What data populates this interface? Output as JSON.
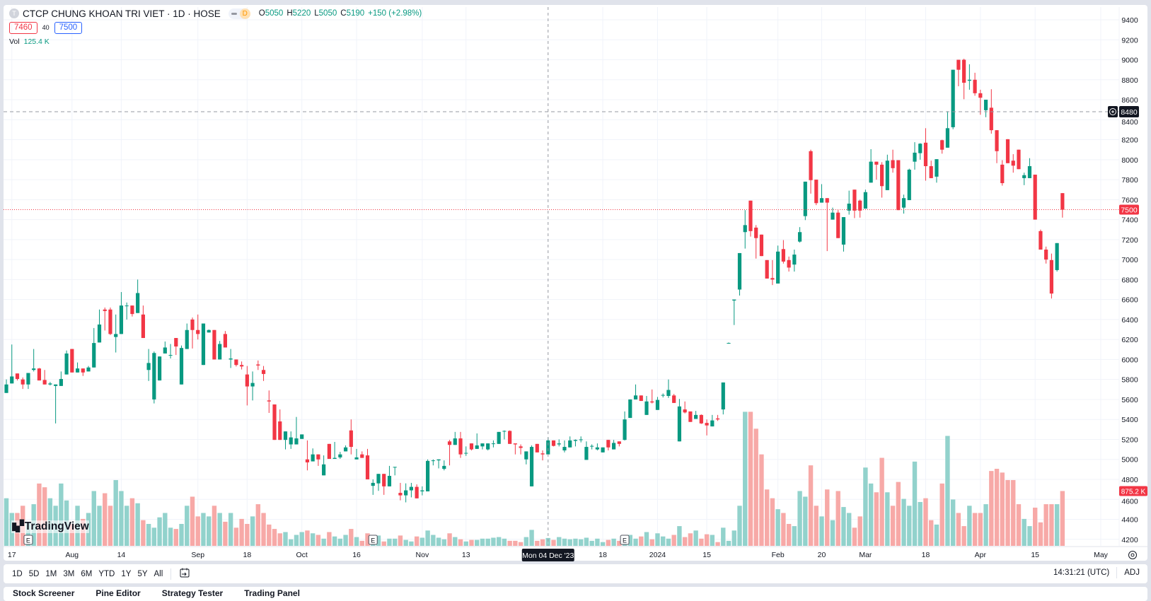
{
  "header": {
    "symbol_initial": "T",
    "title": "CTCP CHUNG KHOAN TRI VIET · 1D · HOSE",
    "badge": "D",
    "ohlc": {
      "o_label": "O",
      "o": "5050",
      "h_label": "H",
      "h": "5220",
      "l_label": "L",
      "l": "5050",
      "c_label": "C",
      "c": "5190",
      "change": "+150 (+2.98%)"
    }
  },
  "quick_trade": {
    "sell": "7460",
    "spread": "40",
    "buy": "7500"
  },
  "volume_legend": {
    "label": "Vol",
    "value": "125.4 K"
  },
  "price_tags": {
    "last_price": "7500",
    "alert_line": "8480",
    "last_volume": "875.2 K"
  },
  "crosshair_label": "Mon 04 Dec '23",
  "logo_text": "TradingView",
  "toolbar": {
    "ranges": [
      "1D",
      "5D",
      "1M",
      "3M",
      "6M",
      "YTD",
      "1Y",
      "5Y",
      "All"
    ],
    "clock": "14:31:21 (UTC)",
    "adj": "ADJ"
  },
  "bottom_tabs": [
    "Stock Screener",
    "Pine Editor",
    "Strategy Tester",
    "Trading Panel"
  ],
  "chart_data": {
    "type": "candlestick",
    "interval": "1D",
    "price_axis": {
      "min": 4200,
      "max": 9400,
      "step": 200,
      "labels": [
        "9400",
        "9200",
        "9000",
        "8800",
        "8600",
        "8400",
        "8200",
        "8000",
        "7800",
        "7600",
        "7400",
        "7200",
        "7000",
        "6800",
        "6600",
        "6400",
        "6200",
        "6000",
        "5800",
        "5600",
        "5400",
        "5200",
        "5000",
        "4800",
        "4600",
        "4400",
        "4200"
      ]
    },
    "time_ticks": [
      {
        "label": "17",
        "idx": 1
      },
      {
        "label": "Aug",
        "idx": 12
      },
      {
        "label": "14",
        "idx": 21
      },
      {
        "label": "Sep",
        "idx": 35
      },
      {
        "label": "18",
        "idx": 44
      },
      {
        "label": "Oct",
        "idx": 54
      },
      {
        "label": "16",
        "idx": 64
      },
      {
        "label": "Nov",
        "idx": 76
      },
      {
        "label": "13",
        "idx": 84
      },
      {
        "label": "18",
        "idx": 109
      },
      {
        "label": "2024",
        "idx": 119
      },
      {
        "label": "15",
        "idx": 128
      },
      {
        "label": "Feb",
        "idx": 141
      },
      {
        "label": "20",
        "idx": 149
      },
      {
        "label": "Mar",
        "idx": 157
      },
      {
        "label": "18",
        "idx": 168
      },
      {
        "label": "Apr",
        "idx": 178
      },
      {
        "label": "15",
        "idx": 188
      },
      {
        "label": "May",
        "idx": 200
      }
    ],
    "crosshair_idx": 99,
    "alert_price": 8480,
    "last_price": 7500,
    "events": [
      {
        "label": "E",
        "idx": 4
      },
      {
        "label": "E",
        "idx": 67
      },
      {
        "label": "E",
        "idx": 113
      }
    ],
    "colors": {
      "up": "#089981",
      "down": "#f23645",
      "volume_up": "#92d2cc",
      "volume_down": "#f7a9a7",
      "quick_buy": "#2962ff"
    },
    "candle_fields": [
      "open",
      "high",
      "low",
      "close",
      "volume_k"
    ],
    "candles": [
      [
        5665,
        5800,
        5665,
        5750,
        760
      ],
      [
        5760,
        6150,
        5760,
        5830,
        525
      ],
      [
        5860,
        5860,
        5790,
        5805,
        525
      ],
      [
        5800,
        5820,
        5705,
        5750,
        640
      ],
      [
        5750,
        5865,
        5705,
        5865,
        385
      ],
      [
        5895,
        6105,
        5880,
        5910,
        665
      ],
      [
        5910,
        5915,
        5790,
        5790,
        995
      ],
      [
        5795,
        5895,
        5750,
        5750,
        935
      ],
      [
        5750,
        5775,
        5740,
        5760,
        760
      ],
      [
        5735,
        5750,
        5360,
        5750,
        640
      ],
      [
        5735,
        5880,
        5735,
        5805,
        995
      ],
      [
        5850,
        6090,
        5850,
        6060,
        725
      ],
      [
        6105,
        6105,
        5870,
        5870,
        350
      ],
      [
        5870,
        5970,
        5870,
        5910,
        640
      ],
      [
        5910,
        5910,
        5835,
        5870,
        430
      ],
      [
        5880,
        5935,
        5880,
        5920,
        525
      ],
      [
        5920,
        6315,
        5920,
        6165,
        875
      ],
      [
        6170,
        6500,
        6170,
        6350,
        640
      ],
      [
        6500,
        6520,
        6290,
        6485,
        840
      ],
      [
        6500,
        6520,
        6245,
        6255,
        640
      ],
      [
        6225,
        6450,
        6070,
        6255,
        1050
      ],
      [
        6255,
        6675,
        6255,
        6540,
        875
      ],
      [
        6535,
        6570,
        6400,
        6540,
        640
      ],
      [
        6540,
        6540,
        6430,
        6455,
        760
      ],
      [
        6465,
        6800,
        6465,
        6665,
        680
      ],
      [
        6450,
        6540,
        6215,
        6215,
        410
      ],
      [
        5895,
        6105,
        5785,
        5965,
        350
      ],
      [
        5600,
        6080,
        5560,
        6065,
        290
      ],
      [
        5790,
        6030,
        5790,
        6030,
        455
      ],
      [
        6060,
        6180,
        6060,
        6120,
        525
      ],
      [
        6045,
        6155,
        6010,
        6045,
        290
      ],
      [
        6215,
        6215,
        6045,
        6130,
        270
      ],
      [
        5750,
        6140,
        5750,
        6115,
        350
      ],
      [
        6105,
        6360,
        6105,
        6295,
        640
      ],
      [
        6400,
        6420,
        6110,
        6295,
        785
      ],
      [
        6295,
        6450,
        6200,
        6255,
        470
      ],
      [
        5945,
        6360,
        5945,
        6360,
        525
      ],
      [
        6270,
        6300,
        6270,
        6295,
        470
      ],
      [
        6295,
        6295,
        6000,
        6000,
        640
      ],
      [
        6000,
        6185,
        6000,
        6155,
        525
      ],
      [
        6255,
        6285,
        6120,
        6120,
        385
      ],
      [
        6000,
        6105,
        5915,
        6010,
        525
      ],
      [
        6000,
        6000,
        5930,
        5945,
        290
      ],
      [
        5945,
        5980,
        5900,
        5930,
        430
      ],
      [
        5850,
        5935,
        5540,
        5730,
        350
      ],
      [
        5730,
        5880,
        5590,
        5765,
        470
      ],
      [
        5950,
        5990,
        5895,
        5940,
        665
      ],
      [
        5895,
        5935,
        5785,
        5855,
        525
      ],
      [
        5590,
        5690,
        5465,
        5580,
        340
      ],
      [
        5550,
        5550,
        5195,
        5195,
        270
      ],
      [
        5380,
        5500,
        5195,
        5195,
        200
      ],
      [
        5195,
        5280,
        5100,
        5280,
        220
      ],
      [
        5150,
        5280,
        5105,
        5220,
        105
      ],
      [
        5150,
        5425,
        5150,
        5210,
        175
      ],
      [
        5205,
        5250,
        5205,
        5250,
        220
      ],
      [
        5000,
        5190,
        4890,
        4970,
        245
      ],
      [
        4980,
        5110,
        4980,
        5050,
        200
      ],
      [
        5050,
        5050,
        4935,
        5000,
        175
      ],
      [
        4840,
        5040,
        4840,
        4950,
        115
      ],
      [
        5155,
        5155,
        5005,
        5005,
        220
      ],
      [
        5005,
        5175,
        5005,
        5015,
        150
      ],
      [
        5020,
        5075,
        5005,
        5050,
        115
      ],
      [
        5080,
        5140,
        5080,
        5120,
        175
      ],
      [
        5290,
        5400,
        5050,
        5125,
        270
      ],
      [
        5000,
        5105,
        5000,
        5020,
        140
      ],
      [
        5050,
        5080,
        5015,
        5015,
        80
      ],
      [
        5040,
        5105,
        4800,
        4800,
        200
      ],
      [
        4735,
        4800,
        4645,
        4765,
        130
      ],
      [
        4760,
        4855,
        4685,
        4855,
        165
      ],
      [
        4855,
        4855,
        4645,
        4730,
        70
      ],
      [
        4730,
        4935,
        4730,
        4835,
        115
      ],
      [
        4920,
        4925,
        4840,
        4925,
        115
      ],
      [
        4665,
        4765,
        4590,
        4640,
        165
      ],
      [
        4640,
        4760,
        4570,
        4690,
        95
      ],
      [
        4690,
        4765,
        4620,
        4725,
        70
      ],
      [
        4725,
        4750,
        4610,
        4610,
        150
      ],
      [
        4680,
        4730,
        4640,
        4690,
        130
      ],
      [
        4680,
        5000,
        4680,
        4985,
        245
      ],
      [
        4985,
        5000,
        4940,
        4990,
        175
      ],
      [
        4990,
        5000,
        4910,
        5000,
        130
      ],
      [
        4905,
        4990,
        4890,
        4935,
        105
      ],
      [
        5180,
        5195,
        4940,
        5145,
        200
      ],
      [
        5145,
        5275,
        5145,
        5210,
        140
      ],
      [
        5210,
        5275,
        5015,
        5050,
        105
      ],
      [
        5060,
        5130,
        5035,
        5065,
        70
      ],
      [
        5160,
        5160,
        5090,
        5100,
        95
      ],
      [
        5105,
        5260,
        5105,
        5140,
        95
      ],
      [
        5130,
        5160,
        5100,
        5160,
        115
      ],
      [
        5100,
        5160,
        5090,
        5160,
        115
      ],
      [
        5155,
        5190,
        5120,
        5160,
        130
      ],
      [
        5155,
        5275,
        5155,
        5275,
        140
      ],
      [
        5280,
        5290,
        5200,
        5285,
        115
      ],
      [
        5285,
        5290,
        5155,
        5155,
        80
      ],
      [
        5160,
        5160,
        5050,
        5150,
        80
      ],
      [
        5130,
        5150,
        5050,
        5115,
        60
      ],
      [
        5000,
        5080,
        4950,
        5080,
        140
      ],
      [
        4730,
        5140,
        4730,
        5125,
        255
      ],
      [
        5155,
        5155,
        5070,
        5070,
        80
      ],
      [
        5060,
        5090,
        4990,
        5050,
        105
      ],
      [
        5050,
        5220,
        5050,
        5190,
        125.4
      ],
      [
        5190,
        5190,
        5130,
        5135,
        95
      ],
      [
        5150,
        5200,
        5130,
        5160,
        140
      ],
      [
        5090,
        5190,
        5070,
        5125,
        115
      ],
      [
        5120,
        5230,
        5120,
        5190,
        105
      ],
      [
        5185,
        5200,
        5130,
        5195,
        115
      ],
      [
        5195,
        5230,
        5170,
        5200,
        105
      ],
      [
        4995,
        5180,
        4995,
        5125,
        130
      ],
      [
        5130,
        5150,
        5100,
        5135,
        80
      ],
      [
        5100,
        5160,
        5090,
        5120,
        115
      ],
      [
        5070,
        5120,
        5070,
        5120,
        60
      ],
      [
        5195,
        5195,
        5090,
        5120,
        95
      ],
      [
        5100,
        5195,
        5100,
        5165,
        115
      ],
      [
        5180,
        5180,
        5130,
        5155,
        80
      ],
      [
        5195,
        5480,
        5190,
        5400,
        140
      ],
      [
        5415,
        5600,
        5415,
        5600,
        175
      ],
      [
        5600,
        5750,
        5600,
        5640,
        115
      ],
      [
        5640,
        5640,
        5585,
        5585,
        150
      ],
      [
        5445,
        5635,
        5445,
        5580,
        220
      ],
      [
        5580,
        5700,
        5560,
        5570,
        105
      ],
      [
        5495,
        5625,
        5495,
        5595,
        200
      ],
      [
        5640,
        5660,
        5620,
        5645,
        150
      ],
      [
        5635,
        5800,
        5615,
        5695,
        115
      ],
      [
        5640,
        5655,
        5565,
        5565,
        175
      ],
      [
        5180,
        5605,
        5180,
        5530,
        315
      ],
      [
        5500,
        5580,
        5460,
        5470,
        140
      ],
      [
        5480,
        5480,
        5375,
        5375,
        200
      ],
      [
        5405,
        5485,
        5405,
        5445,
        245
      ],
      [
        5445,
        5450,
        5355,
        5360,
        115
      ],
      [
        5365,
        5400,
        5240,
        5340,
        185
      ],
      [
        5330,
        5445,
        5330,
        5390,
        175
      ],
      [
        5410,
        5445,
        5385,
        5400,
        60
      ],
      [
        5500,
        5770,
        5450,
        5770,
        290
      ],
      [
        6160,
        6170,
        6160,
        6165,
        80
      ],
      [
        6590,
        6600,
        6345,
        6600,
        245
      ],
      [
        6700,
        7065,
        6640,
        7065,
        640
      ],
      [
        7275,
        7495,
        7110,
        7345,
        2140
      ],
      [
        7590,
        7590,
        7230,
        7285,
        2140
      ],
      [
        7320,
        7345,
        7010,
        7215,
        1870
      ],
      [
        7250,
        7250,
        7035,
        7035,
        1460
      ],
      [
        6995,
        6995,
        6810,
        6810,
        900
      ],
      [
        6815,
        6995,
        6745,
        6800,
        760
      ],
      [
        6760,
        7140,
        6760,
        7080,
        585
      ],
      [
        7105,
        7195,
        6960,
        6980,
        525
      ],
      [
        6995,
        7030,
        6880,
        6920,
        350
      ],
      [
        6950,
        7100,
        6880,
        7050,
        315
      ],
      [
        7180,
        7325,
        7170,
        7275,
        875
      ],
      [
        7435,
        7780,
        7395,
        7780,
        785
      ],
      [
        8085,
        8100,
        7660,
        7795,
        1285
      ],
      [
        7800,
        7800,
        7545,
        7565,
        640
      ],
      [
        7570,
        7755,
        7570,
        7615,
        470
      ],
      [
        7615,
        7615,
        7085,
        7570,
        900
      ],
      [
        7400,
        7520,
        7400,
        7470,
        410
      ],
      [
        7470,
        7495,
        7215,
        7215,
        875
      ],
      [
        7150,
        7425,
        7080,
        7425,
        620
      ],
      [
        7490,
        7690,
        7450,
        7560,
        525
      ],
      [
        7700,
        7700,
        7415,
        7490,
        290
      ],
      [
        7590,
        7600,
        7420,
        7490,
        470
      ],
      [
        7510,
        7700,
        7510,
        7675,
        1250
      ],
      [
        7770,
        8105,
        7770,
        7980,
        995
      ],
      [
        7980,
        7980,
        7800,
        7950,
        855
      ],
      [
        7950,
        7975,
        7620,
        7735,
        1405
      ],
      [
        7695,
        8050,
        7695,
        7990,
        855
      ],
      [
        7995,
        8100,
        7870,
        7915,
        640
      ],
      [
        7995,
        7995,
        7495,
        7495,
        1020
      ],
      [
        7520,
        7650,
        7460,
        7615,
        750
      ],
      [
        7595,
        7910,
        7595,
        7900,
        640
      ],
      [
        7980,
        8175,
        7900,
        8070,
        1345
      ],
      [
        8065,
        8165,
        8000,
        8160,
        700
      ],
      [
        8170,
        8315,
        7790,
        7935,
        760
      ],
      [
        7935,
        7990,
        7815,
        7815,
        410
      ],
      [
        7830,
        8005,
        7770,
        8005,
        340
      ],
      [
        8195,
        8200,
        8060,
        8100,
        995
      ],
      [
        8120,
        8485,
        8120,
        8315,
        1755
      ],
      [
        8325,
        8900,
        8305,
        8900,
        740
      ],
      [
        9000,
        9000,
        8735,
        8900,
        525
      ],
      [
        9000,
        9010,
        8605,
        8770,
        315
      ],
      [
        8790,
        8955,
        8700,
        8800,
        640
      ],
      [
        8800,
        8870,
        8640,
        8665,
        525
      ],
      [
        8665,
        8700,
        8450,
        8620,
        525
      ],
      [
        8495,
        8600,
        8425,
        8600,
        665
      ],
      [
        8520,
        8705,
        8260,
        8295,
        1195
      ],
      [
        8295,
        8295,
        7965,
        8085,
        1230
      ],
      [
        7950,
        7995,
        7740,
        7765,
        1170
      ],
      [
        8205,
        8205,
        7965,
        7965,
        1050
      ],
      [
        7990,
        8055,
        7870,
        7940,
        1050
      ],
      [
        8100,
        8100,
        7905,
        7905,
        665
      ],
      [
        7815,
        7870,
        7745,
        7845,
        430
      ],
      [
        7815,
        8015,
        7815,
        7935,
        315
      ],
      [
        7850,
        7850,
        7400,
        7400,
        610
      ],
      [
        7285,
        7300,
        7100,
        7100,
        375
      ],
      [
        7100,
        7130,
        6960,
        7000,
        665
      ],
      [
        6995,
        7060,
        6610,
        6660,
        665
      ],
      [
        6895,
        7165,
        6880,
        7165,
        665
      ],
      [
        7665,
        7665,
        7420,
        7500,
        875.2
      ]
    ]
  }
}
